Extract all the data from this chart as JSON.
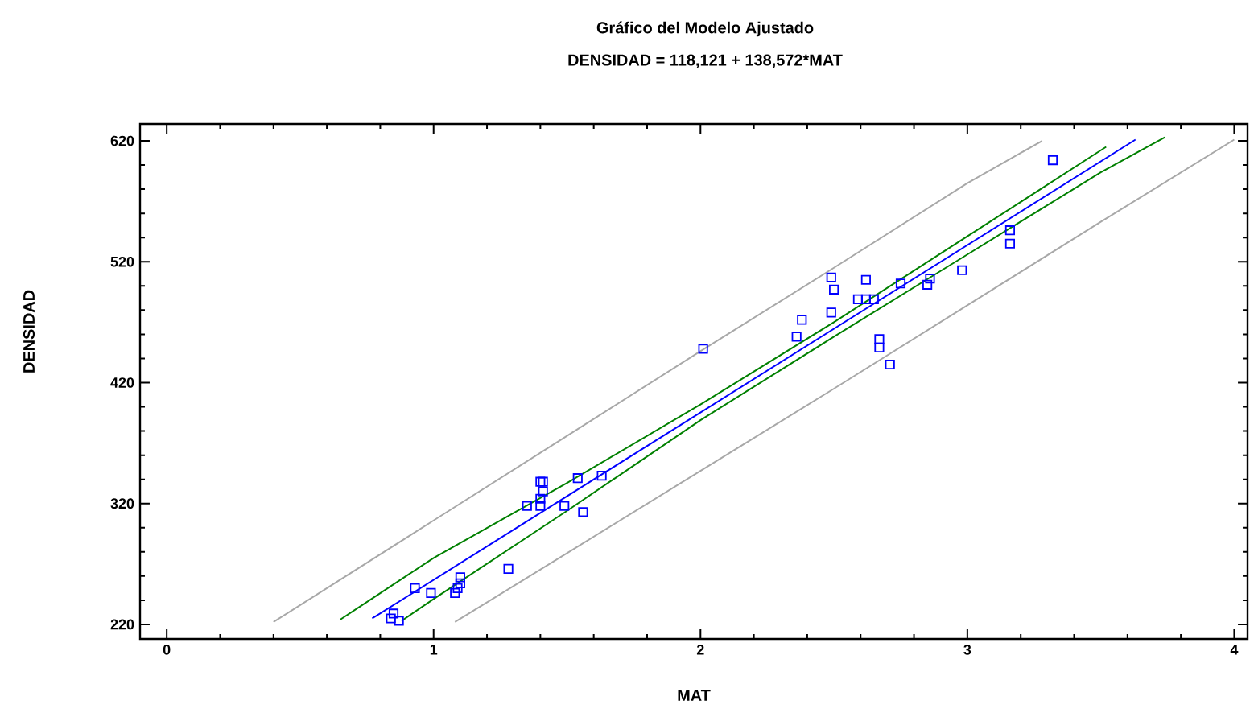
{
  "chart_data": {
    "type": "scatter",
    "title": "Gráfico del Modelo Ajustado",
    "subtitle": "DENSIDAD = 118,121 + 138,572*MAT",
    "xlabel": "MAT",
    "ylabel": "DENSIDAD",
    "xlim": [
      -0.1,
      4.05
    ],
    "ylim": [
      208,
      634
    ],
    "xticks": [
      0,
      1,
      2,
      3,
      4
    ],
    "yticks": [
      220,
      320,
      420,
      520,
      620
    ],
    "series": [
      {
        "type": "line",
        "color": "#a8a8a8",
        "marker": "none",
        "x": [
          0.4,
          1,
          1.5,
          2,
          2.5,
          3,
          3.28
        ],
        "values": [
          222,
          306,
          376,
          446,
          515,
          585,
          620
        ]
      },
      {
        "type": "line",
        "color": "#a8a8a8",
        "marker": "none",
        "x": [
          1.08,
          1.5,
          2,
          2.5,
          3,
          3.5,
          4.0
        ],
        "values": [
          222,
          279,
          347,
          415,
          484,
          553,
          621
        ]
      },
      {
        "type": "line",
        "color": "#008000",
        "marker": "none",
        "x": [
          0.65,
          1,
          1.5,
          2,
          2.5,
          3,
          3.52
        ],
        "values": [
          224,
          275,
          337,
          402,
          470,
          541,
          615
        ]
      },
      {
        "type": "line",
        "color": "#008000",
        "marker": "none",
        "x": [
          0.88,
          1,
          1.5,
          2,
          2.5,
          3,
          3.5,
          3.74
        ],
        "values": [
          223,
          241,
          314,
          389,
          458,
          526,
          594,
          623
        ]
      },
      {
        "type": "line",
        "color": "#0000ff",
        "marker": "none",
        "x": [
          0.77,
          3.63
        ],
        "values": [
          225,
          621
        ]
      },
      {
        "color": "#0000ff",
        "marker": "square",
        "x": [
          0.84,
          0.85,
          0.87,
          0.93,
          0.99,
          1.08,
          1.09,
          1.1,
          1.1,
          1.28,
          1.35,
          1.4,
          1.41,
          1.4,
          1.41,
          1.4,
          1.49,
          1.54,
          1.56,
          1.63,
          2.01,
          2.36,
          2.38,
          2.49,
          2.49,
          2.5,
          2.59,
          2.62,
          2.62,
          2.65,
          2.67,
          2.67,
          2.71,
          2.75,
          2.85,
          2.86,
          2.98,
          3.16,
          3.16,
          3.32
        ],
        "values": [
          225,
          229,
          223,
          250,
          246,
          246,
          250,
          254,
          259,
          266,
          318,
          338,
          338,
          324,
          330,
          318,
          318,
          341,
          313,
          343,
          448,
          458,
          472,
          478,
          507,
          497,
          489,
          505,
          489,
          489,
          456,
          449,
          435,
          502,
          501,
          506,
          513,
          546,
          535,
          604
        ]
      }
    ]
  }
}
